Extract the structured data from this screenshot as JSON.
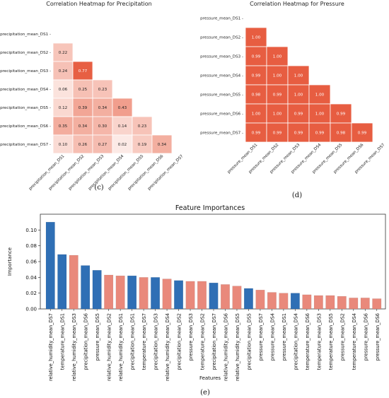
{
  "chart_data": [
    {
      "type": "heatmap",
      "title": "Correlation Heatmap for Precipitation",
      "labels": [
        "precipitation_mean_DS1",
        "precipitation_mean_DS2",
        "precipitation_mean_DS3",
        "precipitation_mean_DS4",
        "precipitation_mean_DS5",
        "precipitation_mean_DS6",
        "precipitation_mean_DS7"
      ],
      "lower_triangle": [
        [],
        [
          0.22
        ],
        [
          0.24,
          0.77
        ],
        [
          0.06,
          0.25,
          0.23
        ],
        [
          0.12,
          0.39,
          0.34,
          0.43
        ],
        [
          0.35,
          0.34,
          0.3,
          0.14,
          0.23
        ],
        [
          0.1,
          0.26,
          0.27,
          0.02,
          0.19,
          0.34
        ]
      ],
      "sublabel": "(c)"
    },
    {
      "type": "heatmap",
      "title": "Correlation Heatmap for Pressure",
      "labels": [
        "pressure_mean_DS1",
        "pressure_mean_DS2",
        "pressure_mean_DS3",
        "pressure_mean_DS4",
        "pressure_mean_DS5",
        "pressure_mean_DS6",
        "pressure_mean_DS7"
      ],
      "lower_triangle": [
        [],
        [
          1.0
        ],
        [
          0.99,
          1.0
        ],
        [
          0.99,
          1.0,
          1.0
        ],
        [
          0.98,
          0.99,
          1.0,
          1.0
        ],
        [
          1.0,
          1.0,
          0.99,
          1.0,
          0.99
        ],
        [
          0.99,
          0.99,
          0.99,
          0.99,
          0.98,
          0.99
        ]
      ],
      "sublabel": "(d)"
    },
    {
      "type": "bar",
      "title": "Feature Importances",
      "xlabel": "Features",
      "ylabel": "Importance",
      "ylim": [
        0,
        0.12
      ],
      "yticks": [
        "0.00",
        "0.02",
        "0.04",
        "0.06",
        "0.08",
        "0.10"
      ],
      "categories": [
        "relative_humidity_mean_DS7",
        "temperature_mean_DS1",
        "relative_humidity_mean_DS3",
        "precipitation_mean_DS6",
        "pressure_mean_DS5",
        "relative_humidity_mean_DS2",
        "relative_humidity_mean_DS1",
        "precipitation_mean_DS1",
        "temperature_mean_DS7",
        "precipitation_mean_DS3",
        "relative_humidity_mean_DS4",
        "precipitation_mean_DS2",
        "pressure_mean_DS3",
        "temperature_mean_DS2",
        "precipitation_mean_DS7",
        "relative_humidity_mean_DS6",
        "relative_humidity_mean_DS5",
        "precipitation_mean_DS5",
        "pressure_mean_DS7",
        "pressure_mean_DS4",
        "pressure_mean_DS1",
        "precipitation_mean_DS4",
        "temperature_mean_DS6",
        "temperature_mean_DS3",
        "temperature_mean_DS5",
        "pressure_mean_DS2",
        "temperature_mean_DS4",
        "pressure_mean_DS6",
        "pressure_mean_DS6"
      ],
      "values": [
        0.11,
        0.069,
        0.068,
        0.055,
        0.049,
        0.043,
        0.042,
        0.042,
        0.04,
        0.04,
        0.038,
        0.036,
        0.035,
        0.035,
        0.033,
        0.031,
        0.029,
        0.026,
        0.024,
        0.021,
        0.02,
        0.02,
        0.018,
        0.017,
        0.017,
        0.016,
        0.014,
        0.014,
        0.013
      ],
      "colors": [
        "#2f6fb5",
        "#2f6fb5",
        "#e9897b",
        "#2f6fb5",
        "#2f6fb5",
        "#e9897b",
        "#e9897b",
        "#2f6fb5",
        "#e9897b",
        "#2f6fb5",
        "#e9897b",
        "#2f6fb5",
        "#e9897b",
        "#e9897b",
        "#2f6fb5",
        "#e9897b",
        "#e9897b",
        "#2f6fb5",
        "#e9897b",
        "#e9897b",
        "#e9897b",
        "#2f6fb5",
        "#e9897b",
        "#e9897b",
        "#e9897b",
        "#e9897b",
        "#e9897b",
        "#e9897b",
        "#e9897b"
      ],
      "sublabel": "(e)"
    }
  ]
}
